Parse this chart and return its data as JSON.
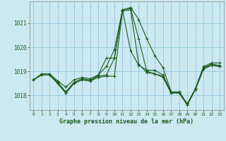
{
  "title": "Graphe pression niveau de la mer (hPa)",
  "background_color": "#cce8f0",
  "grid_color": "#99cce0",
  "line_color": "#1a5c1a",
  "xlim": [
    -0.5,
    23.5
  ],
  "ylim": [
    1017.4,
    1021.9
  ],
  "xticks": [
    0,
    1,
    2,
    3,
    4,
    5,
    6,
    7,
    8,
    9,
    10,
    11,
    12,
    13,
    14,
    15,
    16,
    17,
    18,
    19,
    20,
    21,
    22,
    23
  ],
  "yticks": [
    1018,
    1019,
    1020,
    1021
  ],
  "series": [
    [
      1018.65,
      1018.9,
      1018.9,
      1018.6,
      1018.35,
      1018.65,
      1018.75,
      1018.7,
      1018.85,
      1019.55,
      1019.55,
      1021.55,
      1021.65,
      1021.15,
      1020.35,
      1019.65,
      1019.15,
      1018.15,
      1018.1,
      1017.65,
      1018.3,
      1019.2,
      1019.35,
      1019.35
    ],
    [
      1018.65,
      1018.85,
      1018.85,
      1018.55,
      1018.15,
      1018.55,
      1018.7,
      1018.65,
      1018.8,
      1018.85,
      1019.55,
      1021.55,
      1019.85,
      1019.25,
      1019.05,
      1019.05,
      1018.85,
      1018.15,
      1018.15,
      1017.65,
      1018.25,
      1019.15,
      1019.3,
      1019.25
    ],
    [
      1018.65,
      1018.85,
      1018.85,
      1018.5,
      1018.1,
      1018.5,
      1018.65,
      1018.6,
      1018.85,
      1019.2,
      1019.9,
      1021.55,
      1021.6,
      1020.35,
      1019.0,
      1018.9,
      1018.75,
      1018.1,
      1018.15,
      1017.65,
      1018.25,
      1019.1,
      1019.3,
      1019.2
    ],
    [
      1018.65,
      1018.85,
      1018.85,
      1018.5,
      1018.1,
      1018.5,
      1018.65,
      1018.6,
      1018.75,
      1018.8,
      1018.8,
      1021.5,
      1021.55,
      1019.3,
      1018.95,
      1018.9,
      1018.8,
      1018.1,
      1018.1,
      1017.6,
      1018.25,
      1019.1,
      1019.25,
      1019.2
    ]
  ]
}
